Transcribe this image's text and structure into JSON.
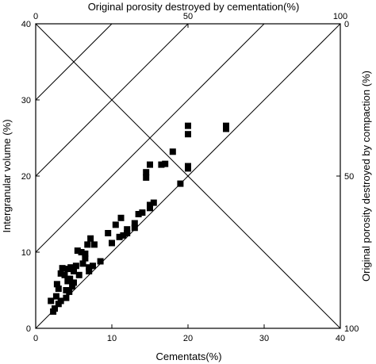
{
  "chart_data": {
    "type": "scatter",
    "xlabel": "Cementats(%)",
    "ylabel": "Intergranular volume (%)",
    "top_label": "Original porosity destroyed by cementation(%)",
    "right_label": "Original porosity destroyed by compaction (%)",
    "xlim": [
      0,
      40
    ],
    "ylim": [
      0,
      40
    ],
    "x_ticks": [
      "0",
      "10",
      "20",
      "30",
      "40"
    ],
    "y_ticks": [
      "0",
      "10",
      "20",
      "30",
      "40"
    ],
    "top_ticks": [
      "0",
      "50",
      "100"
    ],
    "right_ticks": [
      "0",
      "50",
      "100"
    ],
    "grid": false,
    "marker": "square",
    "marker_color": "#000000",
    "points": [
      [
        2.0,
        3.6
      ],
      [
        2.3,
        2.2
      ],
      [
        2.5,
        2.6
      ],
      [
        2.7,
        4.2
      ],
      [
        3.0,
        5.2
      ],
      [
        3.0,
        3.2
      ],
      [
        2.8,
        5.8
      ],
      [
        3.3,
        3.6
      ],
      [
        3.3,
        7.2
      ],
      [
        3.5,
        7.9
      ],
      [
        3.8,
        7.0
      ],
      [
        4.0,
        4.0
      ],
      [
        4.0,
        5.0
      ],
      [
        4.2,
        6.2
      ],
      [
        4.2,
        7.8
      ],
      [
        4.4,
        4.8
      ],
      [
        4.5,
        6.5
      ],
      [
        4.6,
        8.0
      ],
      [
        4.8,
        5.5
      ],
      [
        5.0,
        7.5
      ],
      [
        5.0,
        6.0
      ],
      [
        5.3,
        8.2
      ],
      [
        5.5,
        10.2
      ],
      [
        5.7,
        7.0
      ],
      [
        6.0,
        10.0
      ],
      [
        6.2,
        8.5
      ],
      [
        6.5,
        9.8
      ],
      [
        6.5,
        9.2
      ],
      [
        6.8,
        11.0
      ],
      [
        7.0,
        8.0
      ],
      [
        7.0,
        7.5
      ],
      [
        7.2,
        11.8
      ],
      [
        7.5,
        8.2
      ],
      [
        7.7,
        11.0
      ],
      [
        8.5,
        8.8
      ],
      [
        9.5,
        12.5
      ],
      [
        10.0,
        11.2
      ],
      [
        10.5,
        13.6
      ],
      [
        11.0,
        12.0
      ],
      [
        11.2,
        14.5
      ],
      [
        11.5,
        12.2
      ],
      [
        12.0,
        13.0
      ],
      [
        12.0,
        12.5
      ],
      [
        13.0,
        13.2
      ],
      [
        13.0,
        13.8
      ],
      [
        13.5,
        15.0
      ],
      [
        14.0,
        15.2
      ],
      [
        14.5,
        19.8
      ],
      [
        14.5,
        20.5
      ],
      [
        15.0,
        15.8
      ],
      [
        15.0,
        16.2
      ],
      [
        15.0,
        21.5
      ],
      [
        15.5,
        16.5
      ],
      [
        16.5,
        21.5
      ],
      [
        17.0,
        21.6
      ],
      [
        18.0,
        23.2
      ],
      [
        19.0,
        19.0
      ],
      [
        20.0,
        21.0
      ],
      [
        20.0,
        21.3
      ],
      [
        20.0,
        26.6
      ],
      [
        20.0,
        25.5
      ],
      [
        25.0,
        26.6
      ],
      [
        25.0,
        26.2
      ]
    ]
  }
}
